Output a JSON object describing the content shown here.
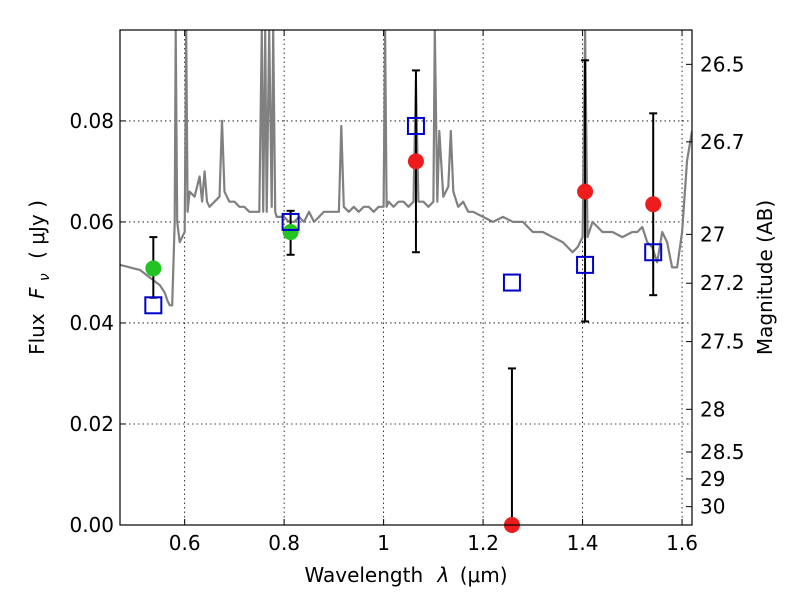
{
  "chart_data": {
    "type": "scatter",
    "xlabel_prefix": "Wavelength",
    "xlabel_symbol": "λ",
    "xlabel_unit": "(μm)",
    "ylabel_left_prefix": "Flux",
    "ylabel_left_symbol": "F",
    "ylabel_left_sub": "ν",
    "ylabel_left_unit": "( μJy )",
    "ylabel_right": "Magnitude (AB)",
    "xlim": [
      0.47,
      1.62
    ],
    "ylim": [
      0.0,
      0.098
    ],
    "grid": true,
    "x_ticks": [
      0.6,
      0.8,
      1.0,
      1.2,
      1.4,
      1.6
    ],
    "x_tick_labels": [
      "0.6",
      "0.8",
      "1",
      "1.2",
      "1.4",
      "1.6"
    ],
    "y_ticks": [
      0.0,
      0.02,
      0.04,
      0.06,
      0.08
    ],
    "y_tick_labels": [
      "0.00",
      "0.02",
      "0.04",
      "0.06",
      "0.08"
    ],
    "mag_ticks": [
      26.5,
      26.7,
      27,
      27.2,
      27.5,
      28,
      28.5,
      29,
      30
    ],
    "mag_tick_labels": [
      "26.5",
      "26.7",
      "27",
      "27.2",
      "27.5",
      "28",
      "28.5",
      "29",
      "30"
    ],
    "series": [
      {
        "name": "model_sed",
        "kind": "line",
        "color": "#808080",
        "x": [
          0.47,
          0.49,
          0.51,
          0.53,
          0.55,
          0.56,
          0.565,
          0.57,
          0.575,
          0.58,
          0.582,
          0.585,
          0.59,
          0.6,
          0.603,
          0.606,
          0.61,
          0.62,
          0.63,
          0.635,
          0.64,
          0.645,
          0.65,
          0.66,
          0.67,
          0.675,
          0.68,
          0.685,
          0.69,
          0.7,
          0.71,
          0.72,
          0.73,
          0.74,
          0.75,
          0.755,
          0.758,
          0.762,
          0.765,
          0.77,
          0.775,
          0.778,
          0.782,
          0.785,
          0.79,
          0.8,
          0.81,
          0.82,
          0.83,
          0.84,
          0.85,
          0.86,
          0.87,
          0.88,
          0.89,
          0.9,
          0.91,
          0.915,
          0.92,
          0.93,
          0.94,
          0.95,
          0.96,
          0.97,
          0.98,
          0.99,
          1.0,
          1.003,
          1.006,
          1.01,
          1.02,
          1.03,
          1.04,
          1.05,
          1.06,
          1.065,
          1.07,
          1.08,
          1.09,
          1.1,
          1.103,
          1.108,
          1.112,
          1.12,
          1.13,
          1.135,
          1.14,
          1.15,
          1.16,
          1.17,
          1.18,
          1.2,
          1.22,
          1.24,
          1.26,
          1.28,
          1.3,
          1.32,
          1.34,
          1.36,
          1.38,
          1.39,
          1.4,
          1.405,
          1.41,
          1.42,
          1.44,
          1.46,
          1.48,
          1.5,
          1.51,
          1.52,
          1.53,
          1.54,
          1.55,
          1.56,
          1.57,
          1.58,
          1.59,
          1.6,
          1.61,
          1.62
        ],
        "y": [
          0.0515,
          0.051,
          0.0505,
          0.049,
          0.0475,
          0.046,
          0.0445,
          0.0435,
          0.0435,
          0.06,
          0.098,
          0.06,
          0.056,
          0.058,
          0.098,
          0.062,
          0.066,
          0.065,
          0.069,
          0.064,
          0.07,
          0.064,
          0.063,
          0.064,
          0.065,
          0.08,
          0.066,
          0.065,
          0.064,
          0.064,
          0.063,
          0.063,
          0.062,
          0.062,
          0.062,
          0.098,
          0.062,
          0.098,
          0.062,
          0.098,
          0.063,
          0.098,
          0.062,
          0.061,
          0.061,
          0.061,
          0.06,
          0.06,
          0.061,
          0.06,
          0.062,
          0.06,
          0.061,
          0.062,
          0.062,
          0.062,
          0.062,
          0.079,
          0.063,
          0.062,
          0.063,
          0.062,
          0.063,
          0.063,
          0.062,
          0.063,
          0.063,
          0.098,
          0.063,
          0.064,
          0.063,
          0.064,
          0.064,
          0.063,
          0.064,
          0.088,
          0.064,
          0.064,
          0.063,
          0.064,
          0.098,
          0.064,
          0.078,
          0.065,
          0.067,
          0.078,
          0.066,
          0.063,
          0.064,
          0.062,
          0.062,
          0.061,
          0.06,
          0.061,
          0.06,
          0.06,
          0.058,
          0.058,
          0.057,
          0.056,
          0.054,
          0.055,
          0.057,
          0.098,
          0.057,
          0.06,
          0.058,
          0.058,
          0.057,
          0.058,
          0.058,
          0.059,
          0.056,
          0.055,
          0.052,
          0.058,
          0.056,
          0.051,
          0.051,
          0.058,
          0.072,
          0.078
        ]
      },
      {
        "name": "observed",
        "kind": "points",
        "points": [
          {
            "x": 0.537,
            "y": 0.0508,
            "err": null,
            "color": "#22c322"
          },
          {
            "x": 0.813,
            "y": 0.058,
            "err": null,
            "color": "#22c322"
          },
          {
            "x": 1.065,
            "y": 0.072,
            "err": null,
            "color": "#ee1c1c"
          },
          {
            "x": 1.405,
            "y": 0.066,
            "err": null,
            "color": "#ee1c1c"
          },
          {
            "x": 1.542,
            "y": 0.0635,
            "err": null,
            "color": "#ee1c1c"
          },
          {
            "x": 1.258,
            "y": 0.0,
            "err": null,
            "color": "#ee1c1c"
          }
        ]
      },
      {
        "name": "error_bars",
        "kind": "errorbar",
        "color": "#000000",
        "bars": [
          {
            "x": 0.537,
            "low": 0.045,
            "high": 0.057
          },
          {
            "x": 0.813,
            "low": 0.0535,
            "high": 0.0622
          },
          {
            "x": 1.065,
            "low": 0.054,
            "high": 0.09
          },
          {
            "x": 1.258,
            "low": 0.0,
            "high": 0.031
          },
          {
            "x": 1.405,
            "low": 0.0403,
            "high": 0.092
          },
          {
            "x": 1.542,
            "low": 0.0455,
            "high": 0.0815
          }
        ]
      },
      {
        "name": "model_photometry",
        "kind": "squares",
        "color": "#0000cc",
        "points": [
          {
            "x": 0.537,
            "y": 0.0435
          },
          {
            "x": 0.813,
            "y": 0.06
          },
          {
            "x": 1.065,
            "y": 0.079
          },
          {
            "x": 1.258,
            "y": 0.048
          },
          {
            "x": 1.405,
            "y": 0.0515
          },
          {
            "x": 1.542,
            "y": 0.054
          }
        ]
      }
    ]
  }
}
